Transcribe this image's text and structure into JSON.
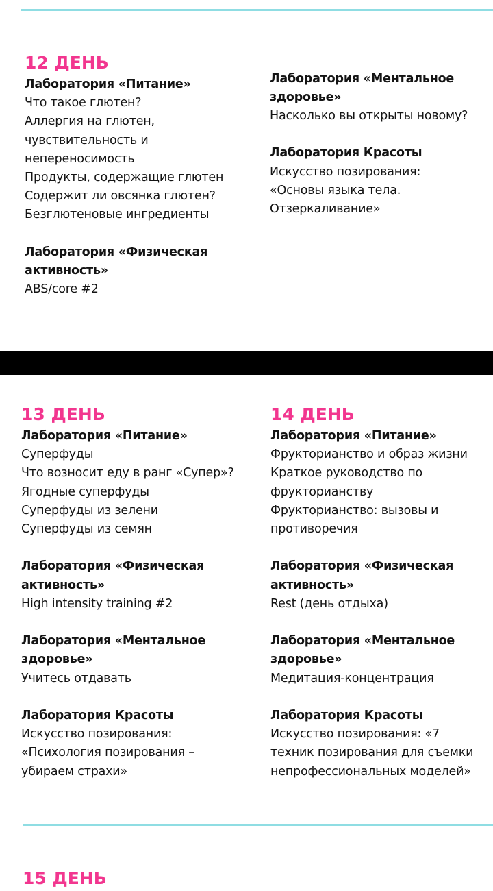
{
  "colors": {
    "accent": "#f2368f",
    "rule": "#8fdde3",
    "band": "#000000"
  },
  "day12": {
    "title": "12 ДЕНЬ",
    "left": [
      {
        "heading": [
          "Лаборатория «Питание»"
        ],
        "lines": [
          "Что такое глютен?",
          "Аллергия на глютен,",
          "чувствительность и",
          "непереносимость",
          "Продукты, содержащие глютен",
          "Содержит ли овсянка глютен?",
          "Безглютеновые ингредиенты"
        ]
      },
      {
        "heading": [
          "Лаборатория «Физическая",
          "активность»"
        ],
        "lines": [
          "ABS/core #2"
        ]
      }
    ],
    "right": [
      {
        "heading": [
          "Лаборатория «Ментальное",
          "здоровье»"
        ],
        "lines": [
          "Насколько вы открыты новому?"
        ]
      },
      {
        "heading": [
          "Лаборатория Красоты"
        ],
        "lines": [
          "Искусство позирования:",
          "«Основы языка тела.",
          "Отзеркаливание»"
        ]
      }
    ]
  },
  "day13": {
    "title": "13 ДЕНЬ",
    "blocks": [
      {
        "heading": [
          "Лаборатория «Питание»"
        ],
        "lines": [
          "Суперфуды",
          "Что возносит еду в ранг «Супер»?",
          "Ягодные суперфуды",
          "Суперфуды из зелени",
          "Суперфуды из семян"
        ]
      },
      {
        "heading": [
          "Лаборатория «Физическая",
          "активность»"
        ],
        "lines": [
          "High intensity training #2"
        ]
      },
      {
        "heading": [
          "Лаборатория «Ментальное",
          "здоровье»"
        ],
        "lines": [
          "Учитесь отдавать"
        ]
      },
      {
        "heading": [
          "Лаборатория Красоты"
        ],
        "lines": [
          "Искусство позирования:",
          "«Психология позирования –",
          "убираем страхи»"
        ]
      }
    ]
  },
  "day14": {
    "title": "14 ДЕНЬ",
    "blocks": [
      {
        "heading": [
          "Лаборатория «Питание»"
        ],
        "lines": [
          "Фрукторианство и образ жизни",
          "Краткое руководство по",
          "фрукторианству",
          "Фрукторианство: вызовы и",
          "противоречия"
        ]
      },
      {
        "heading": [
          "Лаборатория «Физическая",
          "активность»"
        ],
        "lines": [
          "Rest (день отдыха)"
        ]
      },
      {
        "heading": [
          "Лаборатория «Ментальное",
          "здоровье»"
        ],
        "lines": [
          "Медитация-концентрация"
        ]
      },
      {
        "heading": [
          "Лаборатория Красоты"
        ],
        "lines": [
          "Искусство позирования: «7",
          "техник позирования для съемки",
          "непрофессиональных моделей»"
        ]
      }
    ]
  },
  "day15": {
    "title": "15 ДЕНЬ"
  }
}
